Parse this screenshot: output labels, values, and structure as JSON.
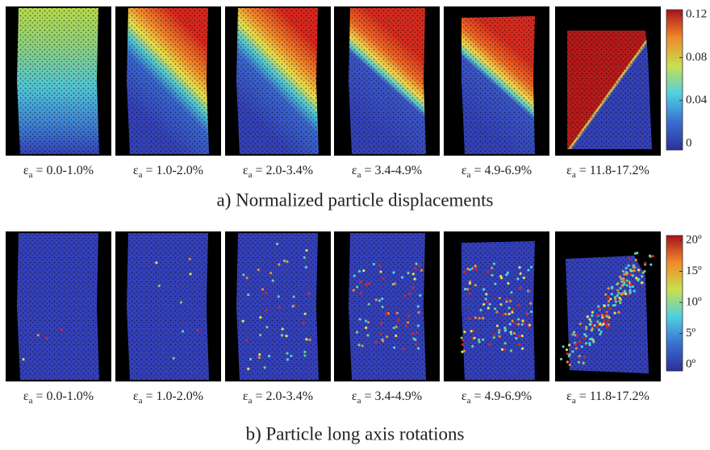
{
  "rows": [
    {
      "caption": "a) Normalized particle displacements",
      "panels": [
        {
          "symbol": "ε",
          "sub": "a",
          "text": " = 0.0-1.0%"
        },
        {
          "symbol": "ε",
          "sub": "a",
          "text": " = 1.0-2.0%"
        },
        {
          "symbol": "ε",
          "sub": "a",
          "text": " = 2.0-3.4%"
        },
        {
          "symbol": "ε",
          "sub": "a",
          "text": " = 3.4-4.9%"
        },
        {
          "symbol": "ε",
          "sub": "a",
          "text": " = 4.9-6.9%"
        },
        {
          "symbol": "ε",
          "sub": "a",
          "text": " = 11.8-17.2%"
        }
      ],
      "colorbar_ticks": [
        0,
        0.04,
        0.08,
        0.12
      ]
    },
    {
      "caption": "b) Particle long axis rotations",
      "panels": [
        {
          "symbol": "ε",
          "sub": "a",
          "text": " = 0.0-1.0%"
        },
        {
          "symbol": "ε",
          "sub": "a",
          "text": " = 1.0-2.0%"
        },
        {
          "symbol": "ε",
          "sub": "a",
          "text": " = 2.0-3.4%"
        },
        {
          "symbol": "ε",
          "sub": "a",
          "text": " = 3.4-4.9%"
        },
        {
          "symbol": "ε",
          "sub": "a",
          "text": " = 4.9-6.9%"
        },
        {
          "symbol": "ε",
          "sub": "a",
          "text": " = 11.8-17.2%"
        }
      ],
      "colorbar_ticks": [
        {
          "value": 0,
          "label": "0º"
        },
        {
          "value": 5,
          "label": "5º"
        },
        {
          "value": 10,
          "label": "10º"
        },
        {
          "value": 15,
          "label": "15º"
        },
        {
          "value": 20,
          "label": "20º"
        }
      ]
    }
  ]
}
